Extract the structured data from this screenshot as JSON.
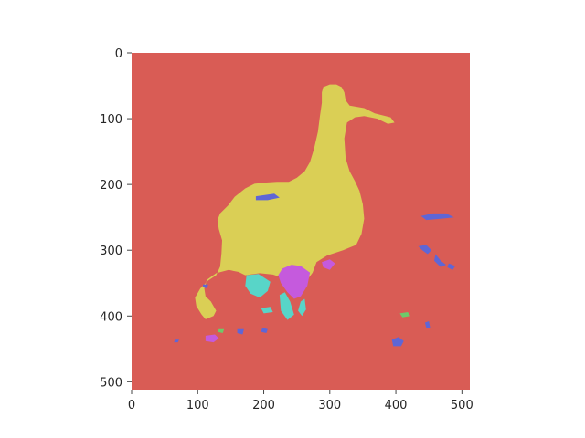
{
  "chart_data": {
    "type": "heatmap",
    "title": "",
    "xlabel": "",
    "ylabel": "",
    "xlim": [
      0,
      512
    ],
    "ylim": [
      512,
      0
    ],
    "x_ticks": [
      "0",
      "100",
      "200",
      "300",
      "400",
      "500"
    ],
    "y_ticks": [
      "0",
      "100",
      "200",
      "300",
      "400",
      "500"
    ],
    "grid": false,
    "colors": {
      "background_class": "#d95c55",
      "object_class": "#dacf55",
      "magenta_class": "#c55add",
      "cyan_class": "#58d5c8",
      "blue_class": "#5f66d6",
      "green_class": "#6ec96a"
    },
    "image_description": "segmentation mask of a heron/pelican-like bird shape on a red background",
    "regions": {
      "bird": [
        [
          290,
          52
        ],
        [
          300,
          48
        ],
        [
          310,
          48
        ],
        [
          318,
          52
        ],
        [
          322,
          60
        ],
        [
          324,
          72
        ],
        [
          330,
          80
        ],
        [
          352,
          84
        ],
        [
          368,
          92
        ],
        [
          392,
          98
        ],
        [
          398,
          106
        ],
        [
          388,
          108
        ],
        [
          372,
          100
        ],
        [
          352,
          96
        ],
        [
          338,
          98
        ],
        [
          326,
          106
        ],
        [
          322,
          130
        ],
        [
          324,
          160
        ],
        [
          330,
          180
        ],
        [
          338,
          195
        ],
        [
          345,
          210
        ],
        [
          350,
          230
        ],
        [
          352,
          252
        ],
        [
          348,
          275
        ],
        [
          340,
          292
        ],
        [
          320,
          300
        ],
        [
          296,
          308
        ],
        [
          280,
          318
        ],
        [
          274,
          334
        ],
        [
          266,
          345
        ],
        [
          244,
          347
        ],
        [
          214,
          337
        ],
        [
          194,
          335
        ],
        [
          172,
          338
        ],
        [
          162,
          333
        ],
        [
          147,
          330
        ],
        [
          128,
          335
        ],
        [
          114,
          345
        ],
        [
          110,
          358
        ],
        [
          112,
          370
        ],
        [
          120,
          378
        ],
        [
          128,
          392
        ],
        [
          124,
          400
        ],
        [
          112,
          405
        ],
        [
          106,
          398
        ],
        [
          98,
          385
        ],
        [
          96,
          372
        ],
        [
          104,
          358
        ],
        [
          116,
          346
        ],
        [
          128,
          338
        ],
        [
          134,
          325
        ],
        [
          136,
          305
        ],
        [
          137,
          285
        ],
        [
          132,
          268
        ],
        [
          130,
          254
        ],
        [
          134,
          244
        ],
        [
          146,
          232
        ],
        [
          156,
          219
        ],
        [
          172,
          206
        ],
        [
          186,
          199
        ],
        [
          204,
          197
        ],
        [
          220,
          196
        ],
        [
          238,
          196
        ],
        [
          250,
          190
        ],
        [
          262,
          180
        ],
        [
          270,
          166
        ],
        [
          276,
          146
        ],
        [
          282,
          120
        ],
        [
          285,
          96
        ],
        [
          288,
          76
        ],
        [
          288,
          60
        ]
      ],
      "magenta": [
        [
          [
            228,
            328
          ],
          [
            242,
            322
          ],
          [
            256,
            324
          ],
          [
            270,
            334
          ],
          [
            266,
            354
          ],
          [
            256,
            370
          ],
          [
            246,
            374
          ],
          [
            236,
            364
          ],
          [
            226,
            350
          ],
          [
            222,
            338
          ]
        ],
        [
          [
            288,
            318
          ],
          [
            300,
            314
          ],
          [
            308,
            320
          ],
          [
            300,
            330
          ],
          [
            290,
            326
          ]
        ],
        [
          [
            112,
            430
          ],
          [
            126,
            428
          ],
          [
            132,
            434
          ],
          [
            124,
            440
          ],
          [
            112,
            438
          ]
        ]
      ],
      "cyan": [
        [
          [
            174,
            338
          ],
          [
            192,
            336
          ],
          [
            210,
            348
          ],
          [
            206,
            362
          ],
          [
            194,
            372
          ],
          [
            180,
            366
          ],
          [
            172,
            354
          ]
        ],
        [
          [
            224,
            368
          ],
          [
            232,
            364
          ],
          [
            240,
            378
          ],
          [
            246,
            398
          ],
          [
            236,
            406
          ],
          [
            226,
            392
          ]
        ],
        [
          [
            256,
            378
          ],
          [
            262,
            374
          ],
          [
            264,
            390
          ],
          [
            258,
            400
          ],
          [
            252,
            392
          ]
        ],
        [
          [
            196,
            388
          ],
          [
            210,
            386
          ],
          [
            214,
            394
          ],
          [
            200,
            396
          ]
        ]
      ],
      "blue": [
        [
          [
            188,
            218
          ],
          [
            216,
            214
          ],
          [
            224,
            220
          ],
          [
            206,
            224
          ],
          [
            188,
            224
          ]
        ],
        [
          [
            438,
            248
          ],
          [
            456,
            244
          ],
          [
            476,
            244
          ],
          [
            488,
            250
          ],
          [
            470,
            252
          ],
          [
            446,
            254
          ]
        ],
        [
          [
            434,
            294
          ],
          [
            446,
            292
          ],
          [
            454,
            300
          ],
          [
            448,
            306
          ],
          [
            440,
            300
          ]
        ],
        [
          [
            460,
            306
          ],
          [
            468,
            316
          ],
          [
            476,
            322
          ],
          [
            468,
            326
          ],
          [
            458,
            316
          ]
        ],
        [
          [
            480,
            320
          ],
          [
            490,
            324
          ],
          [
            486,
            330
          ],
          [
            478,
            326
          ]
        ],
        [
          [
            394,
            436
          ],
          [
            404,
            432
          ],
          [
            412,
            438
          ],
          [
            408,
            446
          ],
          [
            396,
            446
          ]
        ],
        [
          [
            444,
            410
          ],
          [
            450,
            408
          ],
          [
            452,
            418
          ],
          [
            446,
            418
          ]
        ],
        [
          [
            198,
            418
          ],
          [
            206,
            420
          ],
          [
            204,
            426
          ],
          [
            196,
            424
          ]
        ],
        [
          [
            160,
            420
          ],
          [
            170,
            420
          ],
          [
            168,
            428
          ],
          [
            160,
            426
          ]
        ],
        [
          [
            66,
            436
          ],
          [
            72,
            436
          ],
          [
            70,
            440
          ],
          [
            64,
            440
          ]
        ],
        [
          [
            108,
            352
          ],
          [
            116,
            352
          ],
          [
            114,
            358
          ],
          [
            108,
            356
          ]
        ]
      ],
      "green": [
        [
          [
            406,
            396
          ],
          [
            418,
            394
          ],
          [
            422,
            400
          ],
          [
            410,
            402
          ]
        ],
        [
          [
            132,
            420
          ],
          [
            140,
            420
          ],
          [
            138,
            426
          ],
          [
            130,
            424
          ]
        ]
      ]
    }
  }
}
